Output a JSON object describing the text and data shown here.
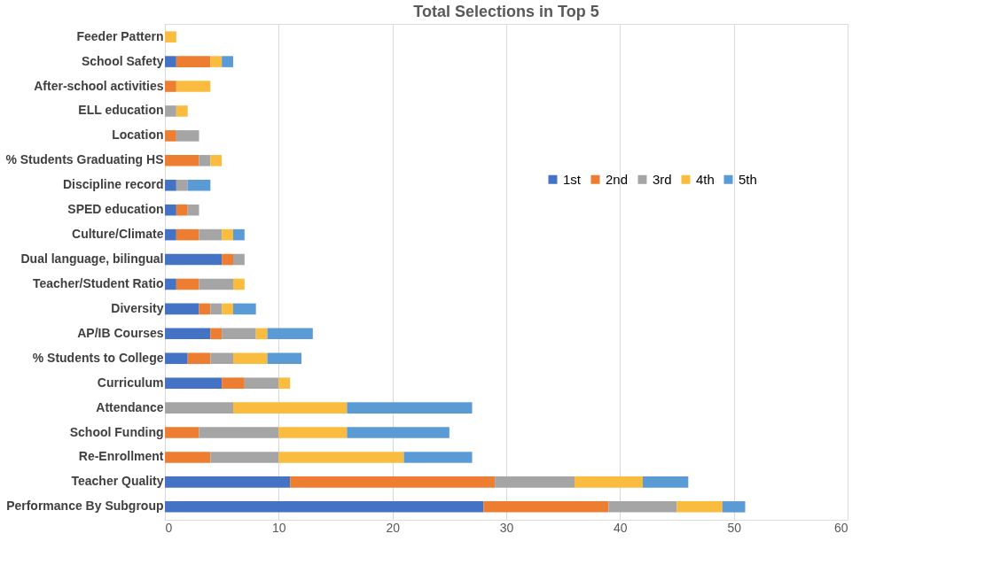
{
  "chart_data": {
    "type": "bar",
    "orientation": "horizontal",
    "stacked": true,
    "title": "Total Selections in Top 5",
    "categories": [
      "Feeder Pattern",
      "School Safety",
      "After-school activities",
      "ELL education",
      "Location",
      "% Students Graduating HS",
      "Discipline record",
      "SPED education",
      "Culture/Climate",
      "Dual language, bilingual",
      "Teacher/Student Ratio",
      "Diversity",
      "AP/IB Courses",
      "% Students to College",
      "Curriculum",
      "Attendance",
      "School Funding",
      "Re-Enrollment",
      "Teacher Quality",
      "Performance By Subgroup"
    ],
    "series": [
      {
        "name": "1st",
        "color": "#4472c4",
        "values": [
          0,
          1,
          0,
          0,
          0,
          0,
          1,
          1,
          1,
          5,
          1,
          3,
          4,
          2,
          5,
          0,
          0,
          0,
          11,
          28
        ]
      },
      {
        "name": "2nd",
        "color": "#ed7d31",
        "values": [
          0,
          3,
          1,
          0,
          1,
          3,
          0,
          1,
          2,
          1,
          2,
          1,
          1,
          2,
          2,
          0,
          3,
          4,
          18,
          11
        ]
      },
      {
        "name": "3rd",
        "color": "#a5a5a5",
        "values": [
          0,
          0,
          0,
          1,
          2,
          1,
          1,
          1,
          2,
          1,
          3,
          1,
          3,
          2,
          3,
          6,
          7,
          6,
          7,
          6
        ]
      },
      {
        "name": "4th",
        "color": "#f9bc3f",
        "values": [
          1,
          1,
          3,
          1,
          0,
          1,
          0,
          0,
          1,
          0,
          1,
          1,
          1,
          3,
          1,
          10,
          6,
          11,
          6,
          4
        ]
      },
      {
        "name": "5th",
        "color": "#5b9bd5",
        "values": [
          0,
          1,
          0,
          0,
          0,
          0,
          2,
          0,
          1,
          0,
          0,
          2,
          4,
          3,
          0,
          11,
          9,
          6,
          4,
          2
        ]
      }
    ],
    "xlim": [
      0,
      60
    ],
    "xticks": [
      0,
      10,
      20,
      30,
      40,
      50,
      60
    ],
    "grid": "x",
    "legend": "top right"
  }
}
